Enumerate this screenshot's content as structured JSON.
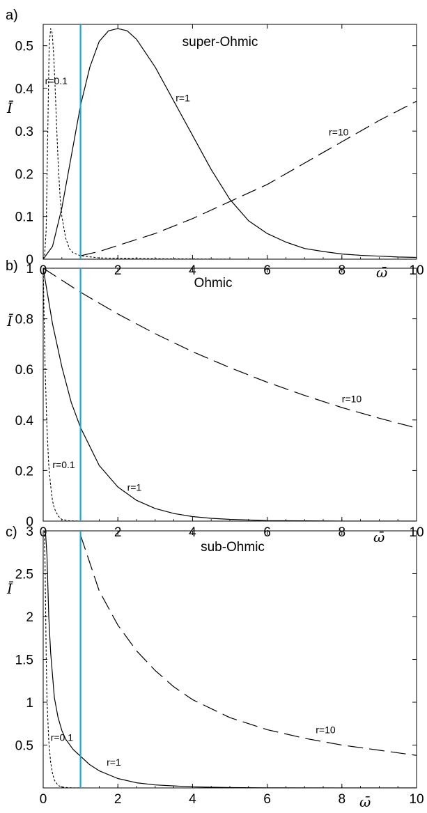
{
  "chart_data": [
    {
      "type": "line",
      "panel_label": "a)",
      "title": "super-Ohmic",
      "xlabel": "ω̄",
      "ylabel": "Ī",
      "xlim": [
        0,
        10
      ],
      "ylim": [
        0,
        0.55
      ],
      "xticks": [
        0,
        2,
        4,
        6,
        8,
        10
      ],
      "xtick_labels": [
        "0",
        "2",
        "4",
        "6",
        "8",
        "10"
      ],
      "yticks": [
        0,
        0.1,
        0.2,
        0.3,
        0.4,
        0.5
      ],
      "ytick_labels": [
        "0",
        "0.1",
        "0.2",
        "0.3",
        "0.4",
        "0.5"
      ],
      "vline": {
        "x": 1,
        "color": "#1aa7d6"
      },
      "series": [
        {
          "name": "r=0.1",
          "style": "dotted",
          "x": [
            0,
            0.04,
            0.08,
            0.12,
            0.16,
            0.2,
            0.24,
            0.28,
            0.32,
            0.36,
            0.4,
            0.45,
            0.5,
            0.6,
            0.7,
            0.8,
            1.0,
            1.5,
            2,
            3,
            5,
            10
          ],
          "y": [
            0,
            0.01,
            0.07,
            0.28,
            0.5,
            0.54,
            0.53,
            0.48,
            0.4,
            0.31,
            0.23,
            0.15,
            0.1,
            0.05,
            0.025,
            0.015,
            0.008,
            0.003,
            0.002,
            0.001,
            0,
            0
          ],
          "label_pos": [
            0.05,
            0.41
          ]
        },
        {
          "name": "r=1",
          "style": "solid",
          "x": [
            0,
            0.25,
            0.5,
            0.75,
            1.0,
            1.25,
            1.5,
            1.75,
            2.0,
            2.25,
            2.5,
            3.0,
            3.5,
            4.0,
            4.5,
            5.0,
            5.5,
            6.0,
            6.5,
            7.0,
            7.5,
            8.0,
            8.5,
            9.0,
            9.5,
            10.0
          ],
          "y": [
            0,
            0.03,
            0.12,
            0.24,
            0.36,
            0.45,
            0.51,
            0.535,
            0.54,
            0.535,
            0.515,
            0.45,
            0.37,
            0.29,
            0.21,
            0.14,
            0.09,
            0.06,
            0.04,
            0.025,
            0.018,
            0.012,
            0.009,
            0.007,
            0.005,
            0.004
          ],
          "label_pos": [
            3.55,
            0.37
          ]
        },
        {
          "name": "r=10",
          "style": "dashed",
          "x": [
            1.0,
            1.5,
            2.0,
            3.0,
            4.0,
            5.0,
            6.0,
            7.0,
            8.0,
            9.0,
            10.0
          ],
          "y": [
            0.008,
            0.018,
            0.032,
            0.06,
            0.095,
            0.135,
            0.175,
            0.225,
            0.275,
            0.325,
            0.37
          ],
          "label_pos": [
            7.65,
            0.29
          ]
        }
      ]
    },
    {
      "type": "line",
      "panel_label": "b)",
      "title": "Ohmic",
      "xlabel": "ω̄",
      "ylabel": "Ī",
      "xlim": [
        0,
        10
      ],
      "ylim": [
        0,
        1
      ],
      "xticks": [
        0,
        2,
        4,
        6,
        8,
        10
      ],
      "xtick_labels": [
        "0",
        "2",
        "4",
        "6",
        "8",
        "10"
      ],
      "yticks": [
        0,
        0.2,
        0.4,
        0.6,
        0.8,
        1
      ],
      "ytick_labels": [
        "0",
        "0.2",
        "0.4",
        "0.6",
        "0.8",
        "1"
      ],
      "vline": {
        "x": 1,
        "color": "#1aa7d6"
      },
      "series": [
        {
          "name": "r=0.1",
          "style": "dotted",
          "x": [
            0,
            0.05,
            0.1,
            0.15,
            0.2,
            0.25,
            0.3,
            0.4,
            0.5,
            0.7,
            1.0,
            10.0
          ],
          "y": [
            1,
            0.61,
            0.37,
            0.22,
            0.14,
            0.08,
            0.05,
            0.02,
            0.007,
            0.001,
            0,
            0
          ],
          "label_pos": [
            0.25,
            0.21
          ]
        },
        {
          "name": "r=1",
          "style": "solid",
          "x": [
            0,
            0.25,
            0.5,
            0.75,
            1.0,
            1.5,
            2.0,
            2.5,
            3.0,
            3.5,
            4.0,
            4.5,
            5.0,
            6.0,
            7.0,
            8.0,
            9.0,
            10.0
          ],
          "y": [
            1,
            0.78,
            0.61,
            0.47,
            0.37,
            0.22,
            0.135,
            0.082,
            0.05,
            0.03,
            0.018,
            0.011,
            0.007,
            0.002,
            0.001,
            0,
            0,
            0
          ],
          "label_pos": [
            2.25,
            0.12
          ]
        },
        {
          "name": "r=10",
          "style": "dashed",
          "x": [
            0,
            1,
            2,
            3,
            4,
            5,
            6,
            7,
            8,
            9,
            10
          ],
          "y": [
            1,
            0.905,
            0.819,
            0.741,
            0.67,
            0.607,
            0.549,
            0.497,
            0.449,
            0.407,
            0.368
          ],
          "label_pos": [
            8.0,
            0.47
          ]
        }
      ]
    },
    {
      "type": "line",
      "panel_label": "c)",
      "title": "sub-Ohmic",
      "xlabel": "ω̄",
      "ylabel": "Ī",
      "xlim": [
        0,
        10
      ],
      "ylim": [
        0,
        3
      ],
      "xticks": [
        0,
        2,
        4,
        6,
        8,
        10
      ],
      "xtick_labels": [
        "0",
        "2",
        "4",
        "6",
        "8",
        "10"
      ],
      "yticks": [
        0.5,
        1,
        1.5,
        2,
        2.5,
        3
      ],
      "ytick_labels": [
        "0.5",
        "1",
        "1.5",
        "2",
        "2.5",
        "3"
      ],
      "vline": {
        "x": 1,
        "color": "#1aa7d6"
      },
      "series": [
        {
          "name": "r=0.1",
          "style": "dotted",
          "x": [
            0.03,
            0.05,
            0.08,
            0.1,
            0.15,
            0.2,
            0.25,
            0.3,
            0.4,
            0.5,
            0.7,
            1.0,
            10.0
          ],
          "y": [
            3.0,
            2.6,
            1.55,
            1.05,
            0.55,
            0.3,
            0.17,
            0.09,
            0.03,
            0.01,
            0.002,
            0,
            0
          ],
          "label_pos": [
            0.2,
            0.55
          ]
        },
        {
          "name": "r=1",
          "style": "solid",
          "x": [
            0.06,
            0.1,
            0.15,
            0.2,
            0.3,
            0.4,
            0.5,
            0.6,
            0.8,
            1.0,
            1.25,
            1.5,
            2.0,
            2.5,
            3.0,
            4.0,
            5.0,
            6.0,
            8.0,
            10.0
          ],
          "y": [
            3.0,
            2.72,
            2.0,
            1.58,
            1.05,
            0.82,
            0.67,
            0.57,
            0.45,
            0.37,
            0.27,
            0.2,
            0.11,
            0.06,
            0.035,
            0.012,
            0.004,
            0.001,
            0,
            0
          ],
          "label_pos": [
            1.7,
            0.26
          ]
        },
        {
          "name": "r=10",
          "style": "dashed",
          "x": [
            1.0,
            1.5,
            2.0,
            2.5,
            3.0,
            3.5,
            4.0,
            5.0,
            6.0,
            7.0,
            8.0,
            9.0,
            10.0
          ],
          "y": [
            2.95,
            2.3,
            1.9,
            1.6,
            1.37,
            1.18,
            1.03,
            0.82,
            0.68,
            0.58,
            0.5,
            0.44,
            0.38
          ],
          "label_pos": [
            7.3,
            0.64
          ]
        }
      ]
    }
  ]
}
